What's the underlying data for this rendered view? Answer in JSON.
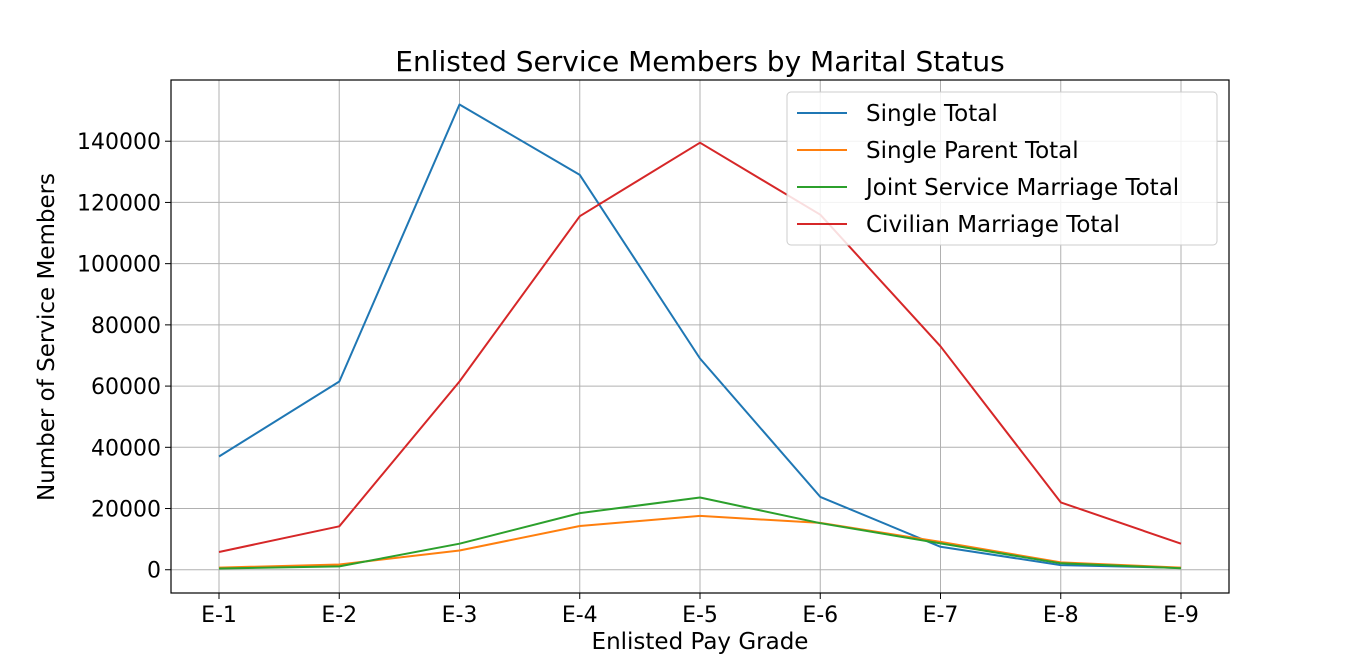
{
  "chart_data": {
    "type": "line",
    "title": "Enlisted Service Members by Marital Status",
    "xlabel": "Enlisted Pay Grade",
    "ylabel": "Number of Service Members",
    "categories": [
      "E-1",
      "E-2",
      "E-3",
      "E-4",
      "E-5",
      "E-6",
      "E-7",
      "E-8",
      "E-9"
    ],
    "ylim": [
      -7600,
      160000
    ],
    "yticks": [
      "0",
      "20000",
      "40000",
      "60000",
      "80000",
      "100000",
      "120000",
      "140000"
    ],
    "grid": true,
    "legend_position": "top-right",
    "series": [
      {
        "name": "Single Total",
        "color": "#1f77b4",
        "values": [
          37000,
          61500,
          152000,
          129000,
          69000,
          23800,
          7500,
          1500,
          600
        ]
      },
      {
        "name": "Single Parent Total",
        "color": "#ff7f0e",
        "values": [
          700,
          1700,
          6300,
          14300,
          17600,
          15300,
          9100,
          2400,
          700
        ]
      },
      {
        "name": "Joint Service Marriage Total",
        "color": "#2ca02c",
        "values": [
          400,
          1100,
          8500,
          18500,
          23600,
          15200,
          8600,
          2100,
          500
        ]
      },
      {
        "name": "Civilian Marriage Total",
        "color": "#d62728",
        "values": [
          5800,
          14200,
          61500,
          115500,
          139500,
          116000,
          73000,
          22000,
          8500
        ]
      }
    ]
  }
}
